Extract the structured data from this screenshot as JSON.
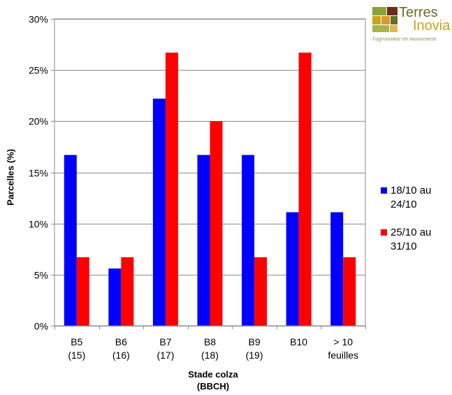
{
  "chart_data": {
    "type": "bar",
    "categories": [
      "B5\n(15)",
      "B6\n(16)",
      "B7\n(17)",
      "B8\n(18)",
      "B9\n(19)",
      "B10",
      "> 10\nfeuilles"
    ],
    "series": [
      {
        "name": "18/10 au 24/10",
        "color": "#0000ff",
        "values": [
          16.7,
          5.6,
          22.2,
          16.7,
          16.7,
          11.1,
          11.1
        ]
      },
      {
        "name": "25/10 au 31/10",
        "color": "#ff0000",
        "values": [
          6.7,
          6.7,
          26.7,
          20.0,
          6.7,
          26.7,
          6.7
        ]
      }
    ],
    "yticks": [
      "0%",
      "5%",
      "10%",
      "15%",
      "20%",
      "25%",
      "30%"
    ],
    "ylim": [
      0,
      30
    ],
    "xlabel": "Stade colza\n(BBCH)",
    "ylabel": "Parcelles (%)",
    "grid": true,
    "legend_position": "right"
  },
  "logo": {
    "title_line1": "Terres",
    "title_line2": "Inovia",
    "tagline": "l'agronomie en mouvement"
  },
  "legend": {
    "items": [
      {
        "label": "18/10 au\n24/10",
        "color": "#0000ff"
      },
      {
        "label": "25/10 au\n31/10",
        "color": "#ff0000"
      }
    ]
  }
}
